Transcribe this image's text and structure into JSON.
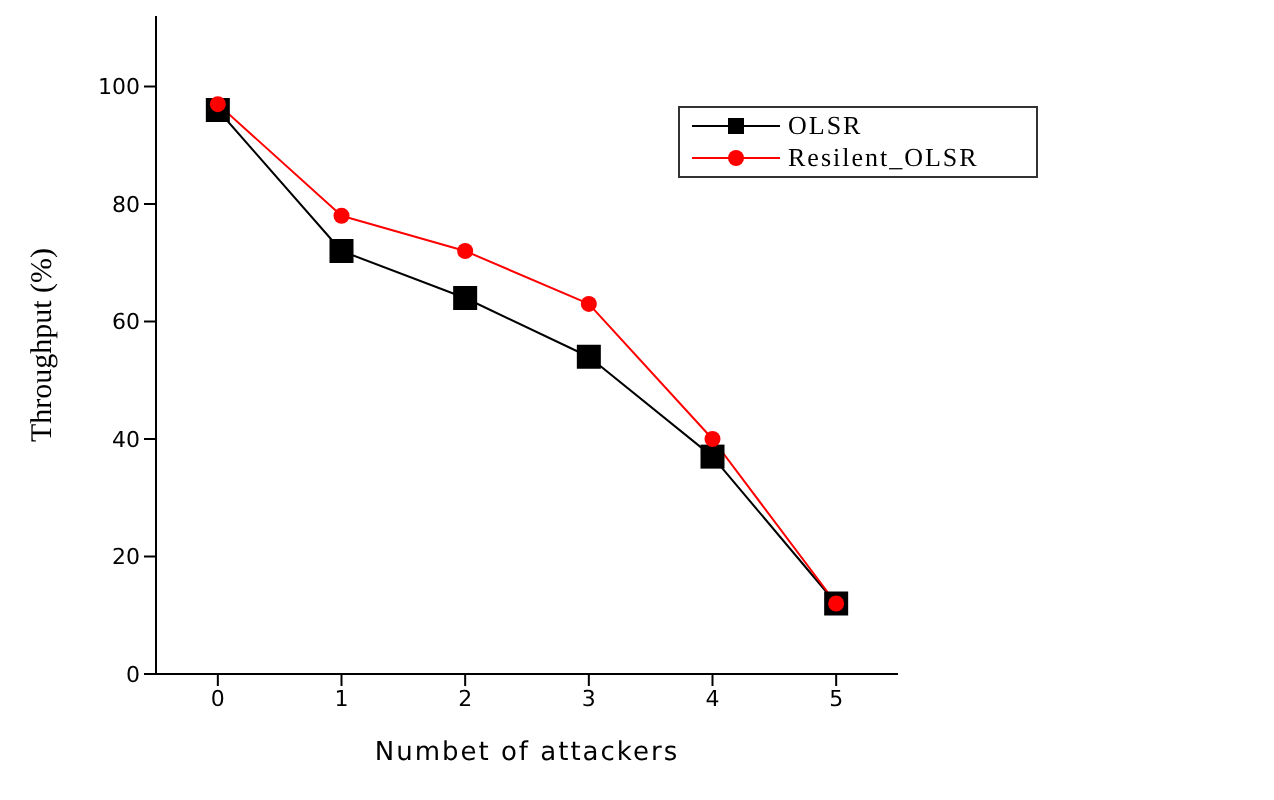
{
  "chart_data": {
    "type": "line",
    "xlabel": "Numbet of attackers",
    "ylabel": "Throughput (%)",
    "x": [
      0,
      1,
      2,
      3,
      4,
      5
    ],
    "xlim": [
      -0.5,
      5.5
    ],
    "xticks": [
      0,
      1,
      2,
      3,
      4,
      5
    ],
    "ylim": [
      0,
      112
    ],
    "yticks": [
      0,
      20,
      40,
      60,
      80,
      100
    ],
    "series": [
      {
        "name": "OLSR",
        "color": "#000000",
        "marker": "square",
        "values": [
          96,
          72,
          64,
          54,
          37,
          12
        ]
      },
      {
        "name": "Resilent_OLSR",
        "color": "#ff0000",
        "marker": "circle",
        "values": [
          97,
          78,
          72,
          63,
          40,
          12
        ]
      }
    ],
    "legend": "top right",
    "grid": false,
    "line_style": "solid"
  }
}
